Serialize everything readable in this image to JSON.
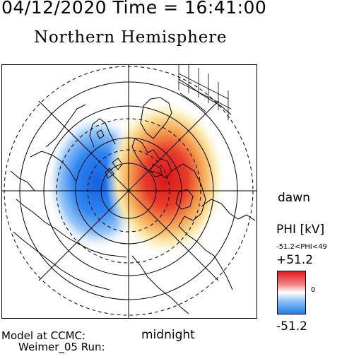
{
  "header": {
    "timestamp": "04/12/2020 Time = 16:41:00",
    "title": "Northern Hemisphere"
  },
  "map": {
    "projection": "polar",
    "hemisphere": "north",
    "orientation_labels": {
      "dawn": "dawn",
      "midnight": "midnight"
    },
    "potential_cells": [
      {
        "sign": "negative",
        "side": "dusk",
        "color": "#1e6fe6"
      },
      {
        "sign": "positive",
        "side": "dawn",
        "color": "#e02020"
      }
    ]
  },
  "colorbar": {
    "label": "PHI [kV]",
    "range_text": "-51.2<PHI<49",
    "max_label": "+51.2",
    "min_label": "-51.2",
    "zero_label": "0",
    "colors": {
      "high": "#e41a1c",
      "mid": "#ffffff",
      "low": "#1e7fe8"
    }
  },
  "footer": {
    "line1": "Model at CCMC:",
    "line2": "Weimer_05 Run:"
  }
}
